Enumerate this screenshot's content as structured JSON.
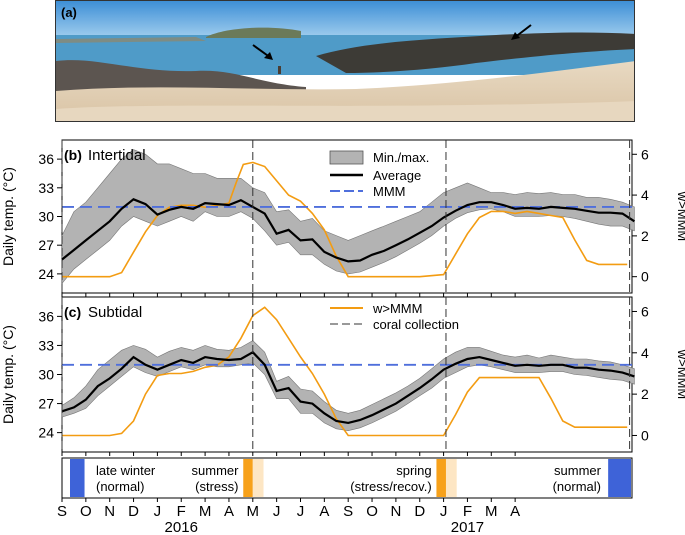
{
  "panel_a": {
    "label": "(a)"
  },
  "panels": [
    {
      "label": "(b)",
      "title": "Intertidal"
    },
    {
      "label": "(c)",
      "title": "Subtidal"
    }
  ],
  "y_label_left": "Daily temp. (°C)",
  "y_label_right": "w>MMM",
  "legend_b": [
    "Min./max.",
    "Average",
    "MMM"
  ],
  "legend_c": [
    "w>MMM",
    "coral collection"
  ],
  "years": [
    "2016",
    "2017"
  ],
  "colors": {
    "minmax_fill": "#b3b3b3",
    "average": "#000000",
    "mmm": "#4f6fdc",
    "wmmm": "#f39c12",
    "winter": "#3e63d8",
    "summer_stress": "#f7a11a",
    "summer_light": "#fde6c4"
  },
  "seasons": [
    {
      "text1": "late winter",
      "text2": "(normal)"
    },
    {
      "text1": "summer",
      "text2": "(stress)"
    },
    {
      "text1": "spring",
      "text2": "(stress/recov.)"
    },
    {
      "text1": "summer",
      "text2": "(normal)"
    }
  ],
  "chart_data": [
    {
      "type": "line",
      "panel": "(b) Intertidal",
      "x_ticks": [
        "S",
        "O",
        "N",
        "D",
        "J",
        "F",
        "M",
        "A",
        "M",
        "J",
        "J",
        "A",
        "S",
        "O",
        "N",
        "D",
        "J",
        "F",
        "M",
        "A"
      ],
      "x_month_index": [
        0,
        1,
        2,
        3,
        4,
        5,
        6,
        7,
        8,
        9,
        10,
        11,
        12,
        13,
        14,
        15,
        16,
        17,
        18,
        19
      ],
      "ylim_left": [
        22,
        38
      ],
      "yticks_left": [
        24,
        27,
        30,
        33,
        36
      ],
      "ylim_right": [
        -0.8,
        6.7
      ],
      "yticks_right": [
        0,
        2,
        4,
        6
      ],
      "mmm": 31.0,
      "coral_collection_months": [
        0,
        8,
        16.1,
        23.8
      ],
      "series": [
        {
          "name": "Average",
          "x": [
            0,
            0.5,
            1,
            1.5,
            2,
            2.5,
            3,
            3.5,
            4,
            4.5,
            5,
            5.5,
            6,
            6.5,
            7,
            7.5,
            8,
            8.5,
            9,
            9.5,
            10,
            10.5,
            11,
            11.5,
            12,
            12.5,
            13,
            13.5,
            14,
            14.5,
            15,
            15.5,
            16,
            16.5,
            17,
            17.5,
            18,
            18.5,
            19,
            19.5,
            20,
            20.5,
            21,
            21.5,
            22,
            22.5,
            23,
            23.5,
            24
          ],
          "values": [
            25.5,
            26.5,
            27.5,
            28.5,
            29.5,
            30.8,
            31.8,
            31.3,
            30.2,
            30.7,
            31.0,
            30.8,
            31.4,
            31.3,
            31.2,
            31.7,
            31.0,
            30.3,
            28.2,
            28.6,
            27.5,
            27.6,
            26.3,
            25.7,
            25.3,
            25.4,
            26.0,
            26.4,
            27.0,
            27.6,
            28.3,
            29.0,
            29.9,
            30.6,
            31.2,
            31.5,
            31.5,
            31.2,
            30.8,
            30.9,
            30.8,
            31.0,
            30.9,
            30.8,
            30.6,
            30.4,
            30.4,
            30.3,
            29.5
          ]
        },
        {
          "name": "Min./max.",
          "x": [
            0,
            0.5,
            1,
            1.5,
            2,
            2.5,
            3,
            3.5,
            4,
            4.5,
            5,
            5.5,
            6,
            6.5,
            7,
            7.5,
            8,
            8.5,
            9,
            9.5,
            10,
            10.5,
            11,
            11.5,
            12,
            12.5,
            13,
            13.5,
            14,
            14.5,
            15,
            15.5,
            16,
            16.5,
            17,
            17.5,
            18,
            18.5,
            19,
            19.5,
            20,
            20.5,
            21,
            21.5,
            22,
            22.5,
            23,
            23.5,
            24
          ],
          "min": [
            23.0,
            24.5,
            25.5,
            26.5,
            27.5,
            29.0,
            30.0,
            29.5,
            29.0,
            29.5,
            30.0,
            29.5,
            30.5,
            30.0,
            30.0,
            30.5,
            29.8,
            28.5,
            27.0,
            27.3,
            26.0,
            26.0,
            25.0,
            24.3,
            24.0,
            24.2,
            24.7,
            25.2,
            25.8,
            26.5,
            27.2,
            28.0,
            29.0,
            29.8,
            30.4,
            30.7,
            30.8,
            30.5,
            30.0,
            30.0,
            30.0,
            30.1,
            30.0,
            29.8,
            29.5,
            29.2,
            29.0,
            29.0,
            28.5
          ],
          "max": [
            28.0,
            30.5,
            31.5,
            33.0,
            34.5,
            36.0,
            37.0,
            36.5,
            35.5,
            35.5,
            35.0,
            34.5,
            34.5,
            34.0,
            34.0,
            34.0,
            33.0,
            32.5,
            30.5,
            30.7,
            29.5,
            29.8,
            28.5,
            28.0,
            27.5,
            28.0,
            28.5,
            29.0,
            29.5,
            30.0,
            30.5,
            31.5,
            32.5,
            33.0,
            33.5,
            33.0,
            32.5,
            32.5,
            32.3,
            32.5,
            32.4,
            32.5,
            32.3,
            32.3,
            32.0,
            32.0,
            31.8,
            31.5,
            31.0
          ]
        },
        {
          "name": "w>MMM",
          "axis": "right",
          "x": [
            0,
            1,
            1.5,
            2,
            2.5,
            3,
            3.5,
            4,
            4.5,
            5,
            5.5,
            6,
            6.5,
            7,
            7.3,
            7.6,
            8,
            8.5,
            9,
            9.5,
            10,
            10.5,
            11,
            11.5,
            12,
            13,
            14,
            15,
            16,
            16.5,
            17,
            17.5,
            18,
            18.5,
            19,
            19.5,
            20,
            20.5,
            21,
            21.5,
            22,
            22.5,
            23,
            23.7
          ],
          "values": [
            0,
            0,
            0,
            0,
            0.2,
            1.2,
            2.2,
            3.0,
            3.4,
            3.5,
            3.5,
            3.4,
            3.5,
            3.6,
            4.6,
            5.5,
            5.6,
            5.4,
            4.7,
            4.0,
            3.7,
            3.1,
            2.3,
            1.0,
            0,
            0,
            0,
            0,
            0.1,
            1.1,
            2.1,
            2.9,
            3.2,
            3.2,
            3.1,
            3.2,
            3.1,
            3.0,
            2.9,
            1.8,
            0.8,
            0.6,
            0.6,
            0.6
          ]
        }
      ]
    },
    {
      "type": "line",
      "panel": "(c) Subtidal",
      "x_ticks": [
        "S",
        "O",
        "N",
        "D",
        "J",
        "F",
        "M",
        "A",
        "M",
        "J",
        "J",
        "A",
        "S",
        "O",
        "N",
        "D",
        "J",
        "F",
        "M",
        "A"
      ],
      "x_month_index": [
        0,
        1,
        2,
        3,
        4,
        5,
        6,
        7,
        8,
        9,
        10,
        11,
        12,
        13,
        14,
        15,
        16,
        17,
        18,
        19
      ],
      "ylim_left": [
        22,
        38
      ],
      "yticks_left": [
        24,
        27,
        30,
        33,
        36
      ],
      "ylim_right": [
        -0.8,
        6.7
      ],
      "yticks_right": [
        0,
        2,
        4,
        6
      ],
      "mmm": 31.0,
      "coral_collection_months": [
        0,
        8,
        16.1,
        23.8
      ],
      "series": [
        {
          "name": "Average",
          "x": [
            0,
            0.5,
            1,
            1.5,
            2,
            2.5,
            3,
            3.5,
            4,
            4.5,
            5,
            5.5,
            6,
            6.5,
            7,
            7.5,
            8,
            8.5,
            9,
            9.5,
            10,
            10.5,
            11,
            11.5,
            12,
            12.5,
            13,
            13.5,
            14,
            14.5,
            15,
            15.5,
            16,
            16.5,
            17,
            17.5,
            18,
            18.5,
            19,
            19.5,
            20,
            20.5,
            21,
            21.5,
            22,
            22.5,
            23,
            23.5,
            24
          ],
          "values": [
            26.2,
            26.6,
            27.4,
            28.8,
            29.6,
            30.6,
            31.8,
            31.0,
            30.5,
            31.0,
            31.5,
            31.2,
            31.8,
            31.6,
            31.5,
            31.6,
            32.3,
            31.0,
            28.3,
            28.6,
            27.2,
            27.0,
            26.0,
            25.2,
            25.0,
            25.3,
            25.8,
            26.4,
            27.0,
            27.8,
            28.6,
            29.5,
            30.5,
            31.1,
            31.6,
            31.8,
            31.5,
            31.2,
            30.9,
            31.0,
            30.9,
            31.0,
            31.0,
            30.7,
            30.7,
            30.5,
            30.4,
            30.2,
            29.8
          ]
        },
        {
          "name": "Min./max.",
          "x": [
            0,
            0.5,
            1,
            1.5,
            2,
            2.5,
            3,
            3.5,
            4,
            4.5,
            5,
            5.5,
            6,
            6.5,
            7,
            7.5,
            8,
            8.5,
            9,
            9.5,
            10,
            10.5,
            11,
            11.5,
            12,
            12.5,
            13,
            13.5,
            14,
            14.5,
            15,
            15.5,
            16,
            16.5,
            17,
            17.5,
            18,
            18.5,
            19,
            19.5,
            20,
            20.5,
            21,
            21.5,
            22,
            22.5,
            23,
            23.5,
            24
          ],
          "min": [
            25.6,
            26.0,
            26.5,
            27.8,
            28.8,
            29.8,
            30.8,
            30.2,
            29.8,
            30.3,
            30.8,
            30.5,
            31.0,
            30.8,
            30.8,
            31.0,
            31.2,
            30.0,
            27.5,
            27.5,
            26.0,
            26.0,
            25.0,
            24.4,
            24.2,
            24.5,
            25.0,
            25.6,
            26.2,
            27.0,
            27.8,
            28.6,
            29.6,
            30.2,
            30.8,
            31.0,
            30.8,
            30.5,
            30.2,
            30.2,
            30.2,
            30.3,
            30.3,
            30.0,
            29.9,
            29.7,
            29.5,
            29.4,
            29.0
          ],
          "max": [
            26.8,
            27.6,
            28.8,
            30.5,
            31.5,
            32.5,
            33.0,
            32.6,
            31.8,
            32.4,
            32.8,
            32.5,
            33.0,
            32.6,
            32.5,
            32.8,
            33.5,
            32.3,
            29.3,
            29.8,
            28.5,
            28.3,
            27.2,
            26.3,
            26.0,
            26.3,
            26.9,
            27.5,
            28.1,
            28.8,
            29.6,
            30.6,
            31.6,
            32.3,
            32.8,
            32.8,
            32.4,
            32.0,
            31.8,
            32.0,
            31.7,
            32.0,
            31.8,
            31.6,
            31.6,
            31.4,
            31.3,
            31.0,
            30.6
          ]
        },
        {
          "name": "w>MMM",
          "axis": "right",
          "x": [
            0,
            1,
            2,
            2.5,
            3,
            3.5,
            4,
            4.5,
            5,
            5.5,
            6,
            6.5,
            7,
            7.5,
            8,
            8.5,
            9,
            9.5,
            10,
            10.5,
            11,
            11.5,
            12,
            13,
            14,
            15,
            16,
            16.5,
            17,
            17.5,
            18,
            18.5,
            19,
            19.5,
            20,
            20.5,
            21,
            21.5,
            22,
            22.5,
            23,
            23.7
          ],
          "values": [
            0,
            0,
            0,
            0.1,
            0.7,
            2.0,
            2.9,
            3.0,
            3.0,
            3.1,
            3.3,
            3.4,
            3.8,
            4.7,
            5.8,
            6.2,
            5.6,
            4.7,
            3.8,
            3.0,
            2.0,
            0.8,
            0,
            0,
            0,
            0,
            0,
            1.0,
            2.1,
            2.8,
            2.8,
            2.8,
            2.8,
            2.8,
            2.8,
            1.8,
            0.7,
            0.4,
            0.4,
            0.4,
            0.4,
            0.4
          ]
        }
      ]
    }
  ]
}
